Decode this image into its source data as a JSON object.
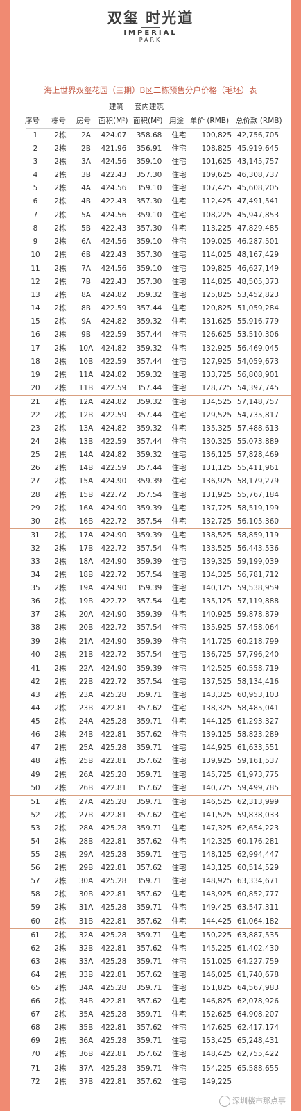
{
  "logo": {
    "cn": "双玺 时光道",
    "en1": "IMPERIAL",
    "en2": "PARK"
  },
  "title": "海上世界双玺花园（三期）B区二栋预售分户价格（毛坯）表",
  "headers": {
    "build_top": "建筑",
    "inner_top": "套内建筑",
    "no": "序号",
    "building": "栋号",
    "room": "房号",
    "build_area": "面积(M²)",
    "inner_area": "面积(M²)",
    "usage": "用途",
    "unit_price": "单价 (RMB)",
    "total_price": "总价款 (RMB)"
  },
  "rows": [
    [
      "1",
      "2栋",
      "2A",
      "424.07",
      "358.68",
      "住宅",
      "100,825",
      "42,756,705"
    ],
    [
      "2",
      "2栋",
      "2B",
      "421.96",
      "356.91",
      "住宅",
      "108,825",
      "45,919,645"
    ],
    [
      "3",
      "2栋",
      "3A",
      "424.56",
      "359.10",
      "住宅",
      "101,625",
      "43,145,757"
    ],
    [
      "4",
      "2栋",
      "3B",
      "422.43",
      "357.30",
      "住宅",
      "109,625",
      "46,308,737"
    ],
    [
      "5",
      "2栋",
      "4A",
      "424.56",
      "359.10",
      "住宅",
      "107,425",
      "45,608,205"
    ],
    [
      "6",
      "2栋",
      "4B",
      "422.43",
      "357.30",
      "住宅",
      "112,425",
      "47,491,541"
    ],
    [
      "7",
      "2栋",
      "5A",
      "424.56",
      "359.10",
      "住宅",
      "108,225",
      "45,947,853"
    ],
    [
      "8",
      "2栋",
      "5B",
      "422.43",
      "357.30",
      "住宅",
      "113,225",
      "47,829,485"
    ],
    [
      "9",
      "2栋",
      "6A",
      "424.56",
      "359.10",
      "住宅",
      "109,025",
      "46,287,501"
    ],
    [
      "10",
      "2栋",
      "6B",
      "422.43",
      "357.30",
      "住宅",
      "114,025",
      "48,167,429"
    ],
    [
      "11",
      "2栋",
      "7A",
      "424.56",
      "359.10",
      "住宅",
      "109,825",
      "46,627,149"
    ],
    [
      "12",
      "2栋",
      "7B",
      "422.43",
      "357.30",
      "住宅",
      "114,825",
      "48,505,373"
    ],
    [
      "13",
      "2栋",
      "8A",
      "424.82",
      "359.32",
      "住宅",
      "125,825",
      "53,452,823"
    ],
    [
      "14",
      "2栋",
      "8B",
      "422.59",
      "357.44",
      "住宅",
      "120,825",
      "51,059,284"
    ],
    [
      "15",
      "2栋",
      "9A",
      "424.82",
      "359.32",
      "住宅",
      "131,625",
      "55,916,779"
    ],
    [
      "16",
      "2栋",
      "9B",
      "422.59",
      "357.44",
      "住宅",
      "126,625",
      "53,510,306"
    ],
    [
      "17",
      "2栋",
      "10A",
      "424.82",
      "359.32",
      "住宅",
      "132,925",
      "56,469,045"
    ],
    [
      "18",
      "2栋",
      "10B",
      "422.59",
      "357.44",
      "住宅",
      "127,925",
      "54,059,673"
    ],
    [
      "19",
      "2栋",
      "11A",
      "424.82",
      "359.32",
      "住宅",
      "133,725",
      "56,808,901"
    ],
    [
      "20",
      "2栋",
      "11B",
      "422.59",
      "357.44",
      "住宅",
      "128,725",
      "54,397,745"
    ],
    [
      "21",
      "2栋",
      "12A",
      "424.82",
      "359.32",
      "住宅",
      "134,525",
      "57,148,757"
    ],
    [
      "22",
      "2栋",
      "12B",
      "422.59",
      "357.44",
      "住宅",
      "129,525",
      "54,735,817"
    ],
    [
      "23",
      "2栋",
      "13A",
      "424.82",
      "359.32",
      "住宅",
      "135,325",
      "57,488,613"
    ],
    [
      "24",
      "2栋",
      "13B",
      "422.59",
      "357.44",
      "住宅",
      "130,325",
      "55,073,889"
    ],
    [
      "25",
      "2栋",
      "14A",
      "424.82",
      "359.32",
      "住宅",
      "136,125",
      "57,828,469"
    ],
    [
      "26",
      "2栋",
      "14B",
      "422.59",
      "357.44",
      "住宅",
      "131,125",
      "55,411,961"
    ],
    [
      "27",
      "2栋",
      "15A",
      "424.90",
      "359.39",
      "住宅",
      "136,925",
      "58,179,279"
    ],
    [
      "28",
      "2栋",
      "15B",
      "422.72",
      "357.54",
      "住宅",
      "131,925",
      "55,767,184"
    ],
    [
      "29",
      "2栋",
      "16A",
      "424.90",
      "359.39",
      "住宅",
      "137,725",
      "58,519,199"
    ],
    [
      "30",
      "2栋",
      "16B",
      "422.72",
      "357.54",
      "住宅",
      "132,725",
      "56,105,360"
    ],
    [
      "31",
      "2栋",
      "17A",
      "424.90",
      "359.39",
      "住宅",
      "138,525",
      "58,859,119"
    ],
    [
      "32",
      "2栋",
      "17B",
      "422.72",
      "357.54",
      "住宅",
      "133,525",
      "56,443,536"
    ],
    [
      "33",
      "2栋",
      "18A",
      "424.90",
      "359.39",
      "住宅",
      "139,325",
      "59,199,039"
    ],
    [
      "34",
      "2栋",
      "18B",
      "422.72",
      "357.54",
      "住宅",
      "134,325",
      "56,781,712"
    ],
    [
      "35",
      "2栋",
      "19A",
      "424.90",
      "359.39",
      "住宅",
      "140,125",
      "59,538,959"
    ],
    [
      "36",
      "2栋",
      "19B",
      "422.72",
      "357.54",
      "住宅",
      "135,125",
      "57,119,888"
    ],
    [
      "37",
      "2栋",
      "20A",
      "424.90",
      "359.39",
      "住宅",
      "140,925",
      "59,878,879"
    ],
    [
      "38",
      "2栋",
      "20B",
      "422.72",
      "357.54",
      "住宅",
      "135,925",
      "57,458,064"
    ],
    [
      "39",
      "2栋",
      "21A",
      "424.90",
      "359.39",
      "住宅",
      "141,725",
      "60,218,799"
    ],
    [
      "40",
      "2栋",
      "21B",
      "422.72",
      "357.54",
      "住宅",
      "136,725",
      "57,796,240"
    ],
    [
      "41",
      "2栋",
      "22A",
      "424.90",
      "359.39",
      "住宅",
      "142,525",
      "60,558,719"
    ],
    [
      "42",
      "2栋",
      "22B",
      "422.72",
      "357.54",
      "住宅",
      "137,525",
      "58,134,416"
    ],
    [
      "43",
      "2栋",
      "23A",
      "425.28",
      "359.71",
      "住宅",
      "143,325",
      "60,953,103"
    ],
    [
      "44",
      "2栋",
      "23B",
      "422.81",
      "357.62",
      "住宅",
      "138,325",
      "58,485,041"
    ],
    [
      "45",
      "2栋",
      "24A",
      "425.28",
      "359.71",
      "住宅",
      "144,125",
      "61,293,327"
    ],
    [
      "46",
      "2栋",
      "24B",
      "422.81",
      "357.62",
      "住宅",
      "139,125",
      "58,823,289"
    ],
    [
      "47",
      "2栋",
      "25A",
      "425.28",
      "359.71",
      "住宅",
      "144,925",
      "61,633,551"
    ],
    [
      "48",
      "2栋",
      "25B",
      "422.81",
      "357.62",
      "住宅",
      "139,925",
      "59,161,537"
    ],
    [
      "49",
      "2栋",
      "26A",
      "425.28",
      "359.71",
      "住宅",
      "145,725",
      "61,973,775"
    ],
    [
      "50",
      "2栋",
      "26B",
      "422.81",
      "357.62",
      "住宅",
      "140,725",
      "59,499,785"
    ],
    [
      "51",
      "2栋",
      "27A",
      "425.28",
      "359.71",
      "住宅",
      "146,525",
      "62,313,999"
    ],
    [
      "52",
      "2栋",
      "27B",
      "422.81",
      "357.62",
      "住宅",
      "141,525",
      "59,838,033"
    ],
    [
      "53",
      "2栋",
      "28A",
      "425.28",
      "359.71",
      "住宅",
      "147,325",
      "62,654,223"
    ],
    [
      "54",
      "2栋",
      "28B",
      "422.81",
      "357.62",
      "住宅",
      "142,325",
      "60,176,281"
    ],
    [
      "55",
      "2栋",
      "29A",
      "425.28",
      "359.71",
      "住宅",
      "148,125",
      "62,994,447"
    ],
    [
      "56",
      "2栋",
      "29B",
      "422.81",
      "357.62",
      "住宅",
      "143,125",
      "60,514,529"
    ],
    [
      "57",
      "2栋",
      "30A",
      "425.28",
      "359.71",
      "住宅",
      "148,925",
      "63,334,671"
    ],
    [
      "58",
      "2栋",
      "30B",
      "422.81",
      "357.62",
      "住宅",
      "143,925",
      "60,852,777"
    ],
    [
      "59",
      "2栋",
      "31A",
      "425.28",
      "359.71",
      "住宅",
      "149,425",
      "63,547,311"
    ],
    [
      "60",
      "2栋",
      "31B",
      "422.81",
      "357.62",
      "住宅",
      "144,425",
      "61,064,182"
    ],
    [
      "61",
      "2栋",
      "32A",
      "425.28",
      "359.71",
      "住宅",
      "150,225",
      "63,887,535"
    ],
    [
      "62",
      "2栋",
      "32B",
      "422.81",
      "357.62",
      "住宅",
      "145,225",
      "61,402,430"
    ],
    [
      "63",
      "2栋",
      "33A",
      "425.28",
      "359.71",
      "住宅",
      "151,025",
      "64,227,759"
    ],
    [
      "64",
      "2栋",
      "33B",
      "422.81",
      "357.62",
      "住宅",
      "146,025",
      "61,740,678"
    ],
    [
      "65",
      "2栋",
      "34A",
      "425.28",
      "359.71",
      "住宅",
      "151,825",
      "64,567,983"
    ],
    [
      "66",
      "2栋",
      "34B",
      "422.81",
      "357.62",
      "住宅",
      "146,825",
      "62,078,926"
    ],
    [
      "67",
      "2栋",
      "35A",
      "425.28",
      "359.71",
      "住宅",
      "152,625",
      "64,908,207"
    ],
    [
      "68",
      "2栋",
      "35B",
      "422.81",
      "357.62",
      "住宅",
      "147,625",
      "62,417,174"
    ],
    [
      "69",
      "2栋",
      "36A",
      "425.28",
      "359.71",
      "住宅",
      "153,425",
      "65,248,431"
    ],
    [
      "70",
      "2栋",
      "36B",
      "422.81",
      "357.62",
      "住宅",
      "148,425",
      "62,755,422"
    ],
    [
      "71",
      "2栋",
      "37A",
      "425.28",
      "359.71",
      "住宅",
      "154,225",
      "65,588,655"
    ],
    [
      "72",
      "2栋",
      "37B",
      "422.81",
      "357.62",
      "住宅",
      "149,225",
      ""
    ]
  ],
  "watermark": "深圳楼市那点事"
}
